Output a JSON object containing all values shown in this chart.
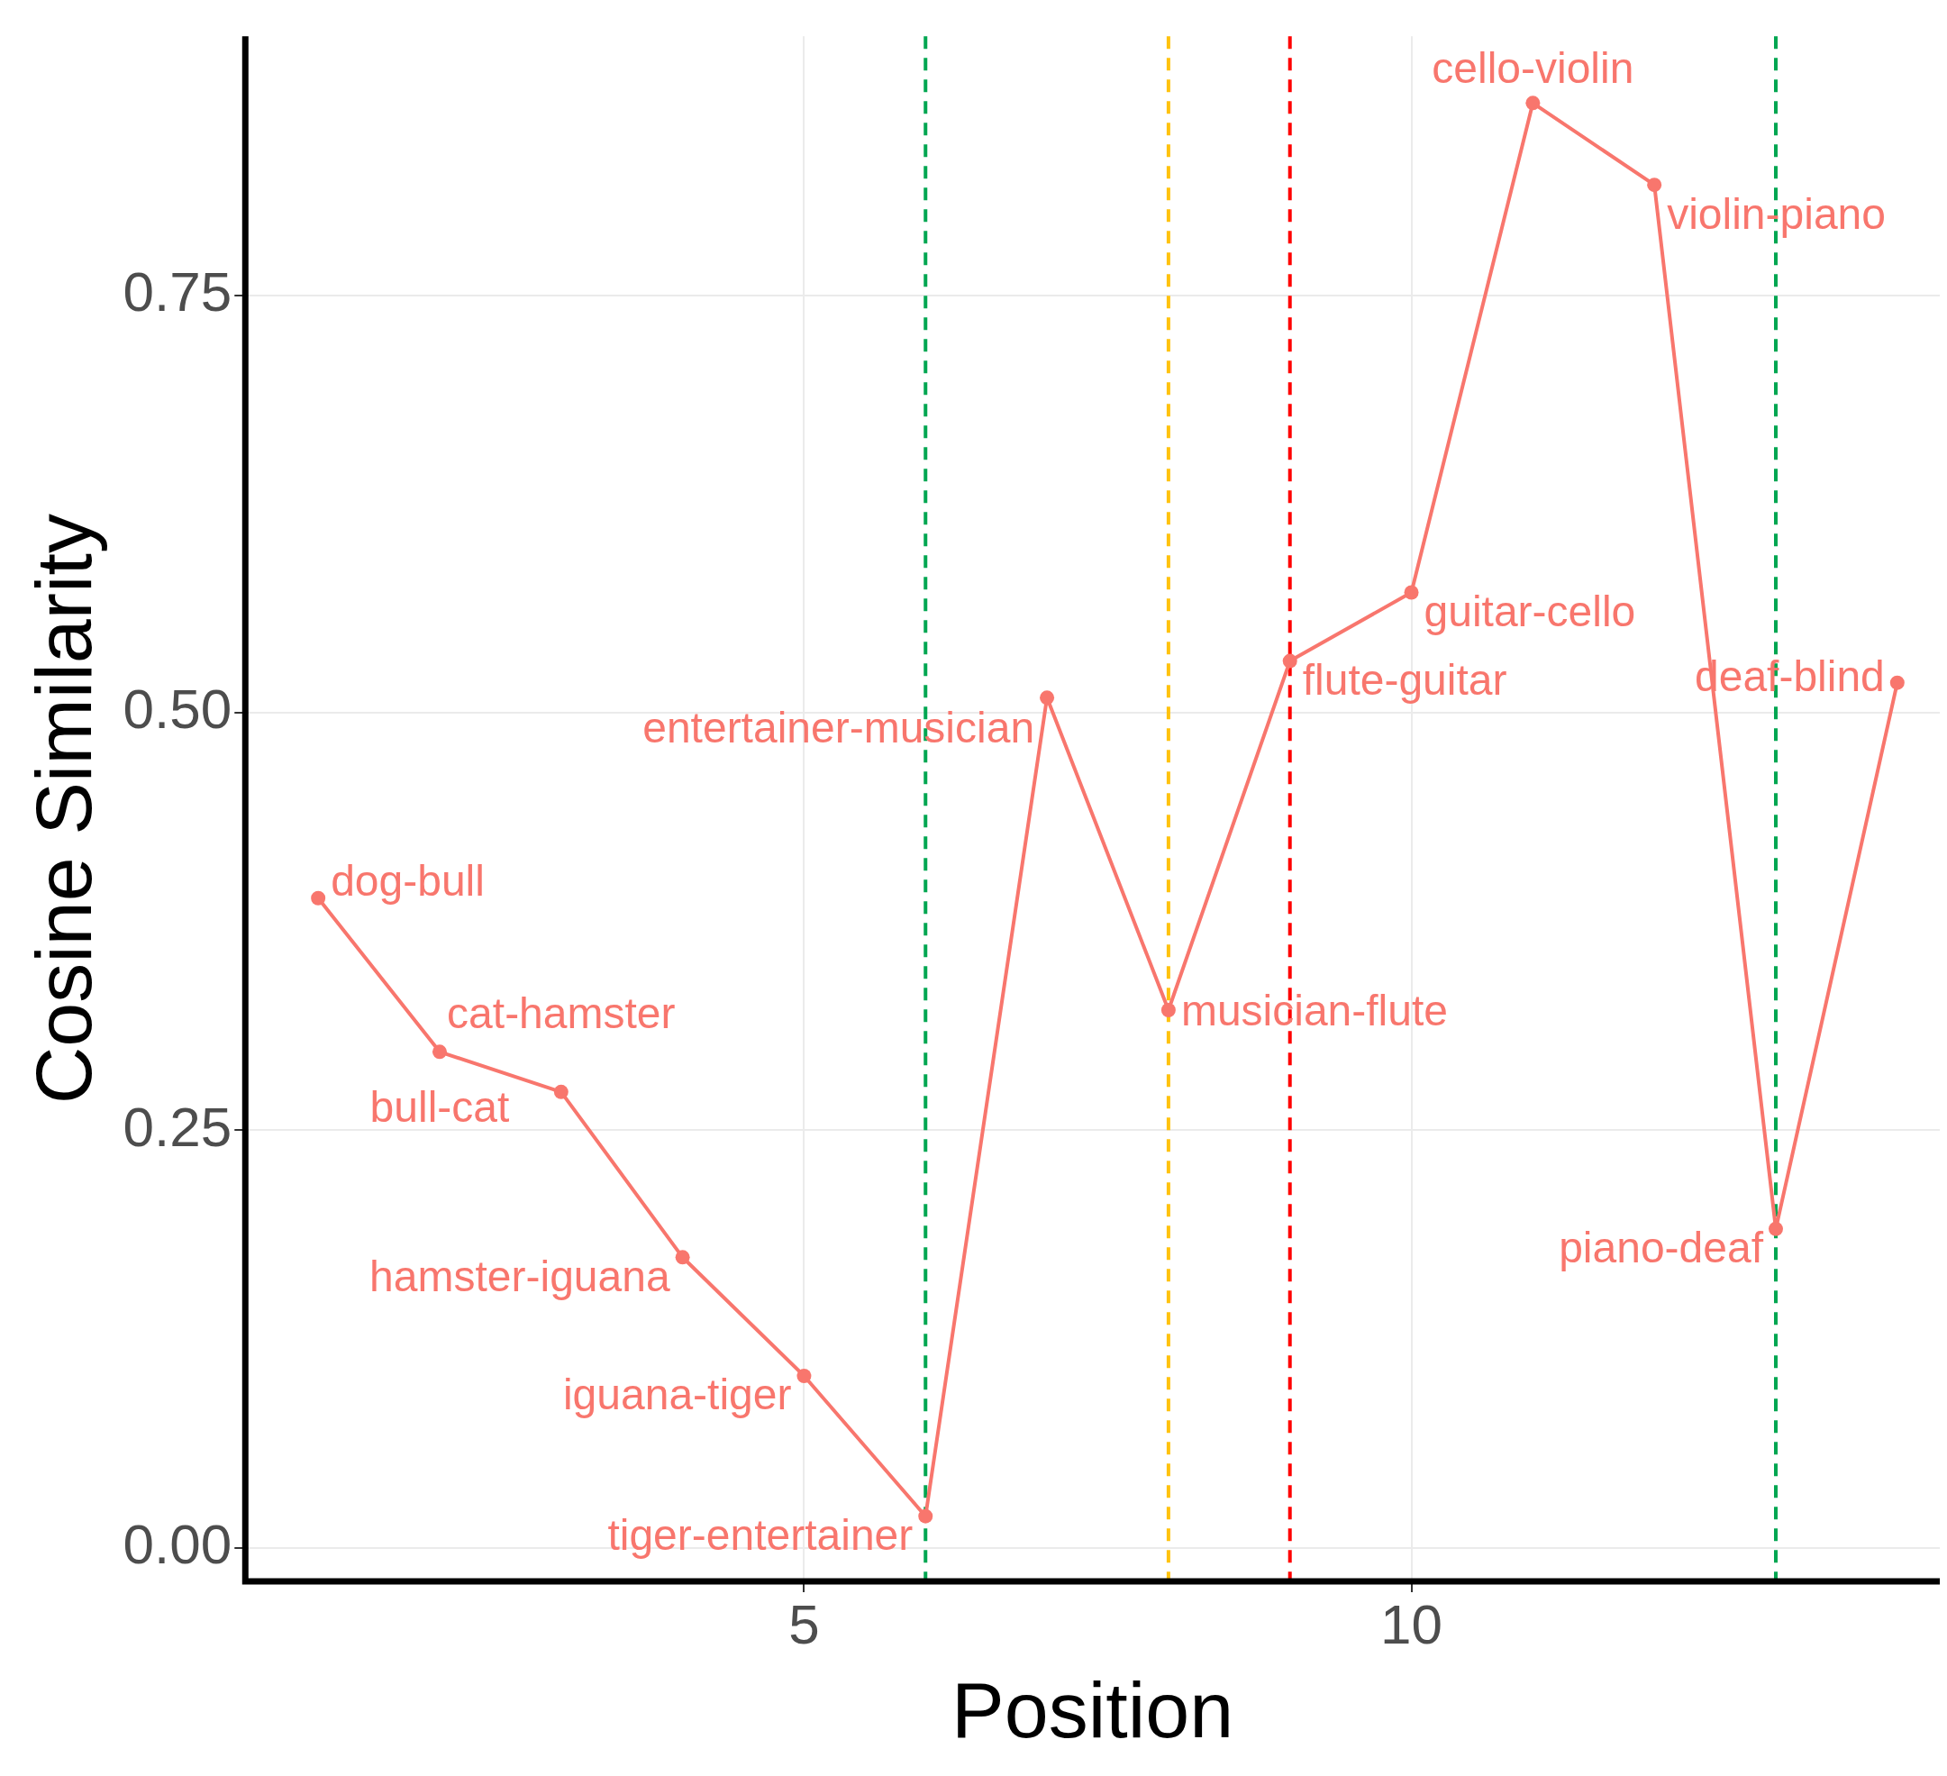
{
  "chart_data": {
    "type": "line",
    "xlabel": "Position",
    "ylabel": "Cosine Similarity",
    "x": [
      1,
      2,
      3,
      4,
      5,
      6,
      7,
      8,
      9,
      10,
      11,
      12,
      13,
      14
    ],
    "series": [
      {
        "color": "#f8766d",
        "values": [
          0.389,
          0.297,
          0.273,
          0.174,
          0.103,
          0.019,
          0.509,
          0.322,
          0.531,
          0.572,
          0.865,
          0.816,
          0.191,
          0.518
        ]
      }
    ],
    "xlim": [
      0.4,
      14.35
    ],
    "ylim": [
      -0.02,
      0.905
    ],
    "xticks": [
      5,
      10
    ],
    "yticks": [
      {
        "value": 0,
        "label": "0.00"
      },
      {
        "value": 0.25,
        "label": "0.25"
      },
      {
        "value": 0.5,
        "label": "0.50"
      },
      {
        "value": 0.75,
        "label": "0.75"
      }
    ],
    "grid": true,
    "legend": false,
    "marker": "circle",
    "line_style": "solid",
    "ref_lines": [
      {
        "axis": "x",
        "value": 6,
        "color": "#00a651",
        "line_style": "dashed"
      },
      {
        "axis": "x",
        "value": 8,
        "color": "#ffc20e",
        "line_style": "dashed"
      },
      {
        "axis": "x",
        "value": 9,
        "color": "#ff0000",
        "line_style": "dashed"
      },
      {
        "axis": "x",
        "value": 13,
        "color": "#00a651",
        "line_style": "dashed"
      }
    ],
    "annotations": [
      {
        "text": "dog-bull",
        "x": 1,
        "y": 0.389
      },
      {
        "text": "bull-cat",
        "x": 2,
        "y": 0.297
      },
      {
        "text": "cat-hamster",
        "x": 3,
        "y": 0.273
      },
      {
        "text": "hamster-iguana",
        "x": 4,
        "y": 0.174
      },
      {
        "text": "iguana-tiger",
        "x": 5,
        "y": 0.103
      },
      {
        "text": "tiger-entertainer",
        "x": 6,
        "y": 0.019
      },
      {
        "text": "entertainer-musician",
        "x": 7,
        "y": 0.509
      },
      {
        "text": "musician-flute",
        "x": 8,
        "y": 0.322
      },
      {
        "text": "flute-guitar",
        "x": 9,
        "y": 0.531
      },
      {
        "text": "guitar-cello",
        "x": 10,
        "y": 0.572
      },
      {
        "text": "cello-violin",
        "x": 11,
        "y": 0.865
      },
      {
        "text": "violin-piano",
        "x": 12,
        "y": 0.816
      },
      {
        "text": "piano-deaf",
        "x": 13,
        "y": 0.191
      },
      {
        "text": "deaf-blind",
        "x": 14,
        "y": 0.518
      }
    ]
  }
}
